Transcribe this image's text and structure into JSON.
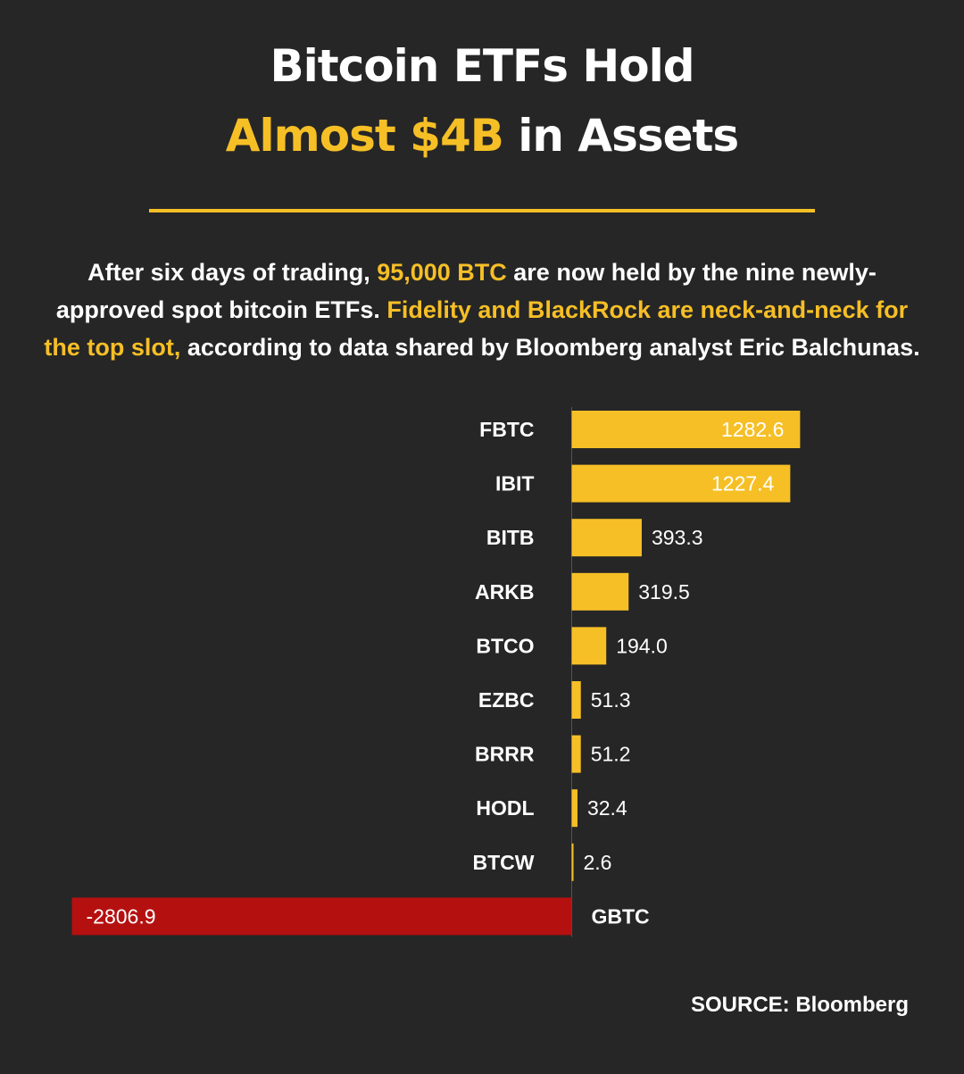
{
  "title": {
    "line1": "Bitcoin ETFs Hold",
    "line2_highlight": "Almost $4B",
    "line2_rest": " in Assets"
  },
  "intro": {
    "part1": "After six days of trading, ",
    "part2_highlight": "95,000 BTC",
    "part3": " are now held by the nine newly-approved spot bitcoin ETFs. ",
    "part4_highlight": "Fidelity and BlackRock are neck-and-neck for the top slot,",
    "part5": " according to data shared by Bloomberg analyst Eric Balchunas."
  },
  "source": "SOURCE: Bloomberg",
  "colors": {
    "background": "#262626",
    "accent": "#f6bf26",
    "negative": "#b51010",
    "text": "#ffffff"
  },
  "chart_data": {
    "type": "bar",
    "orientation": "horizontal",
    "categories": [
      "FBTC",
      "IBIT",
      "BITB",
      "ARKB",
      "BTCO",
      "EZBC",
      "BRRR",
      "HODL",
      "BTCW",
      "GBTC"
    ],
    "values": [
      1282.6,
      1227.4,
      393.3,
      319.5,
      194.0,
      51.3,
      51.2,
      32.4,
      2.6,
      -2806.9
    ],
    "value_labels": [
      "1282.6",
      "1227.4",
      "393.3",
      "319.5",
      "194.0",
      "51.3",
      "51.2",
      "32.4",
      "2.6",
      "-2806.9"
    ],
    "title": "",
    "xlabel": "",
    "ylabel": "",
    "grid": false,
    "legend": "none"
  }
}
